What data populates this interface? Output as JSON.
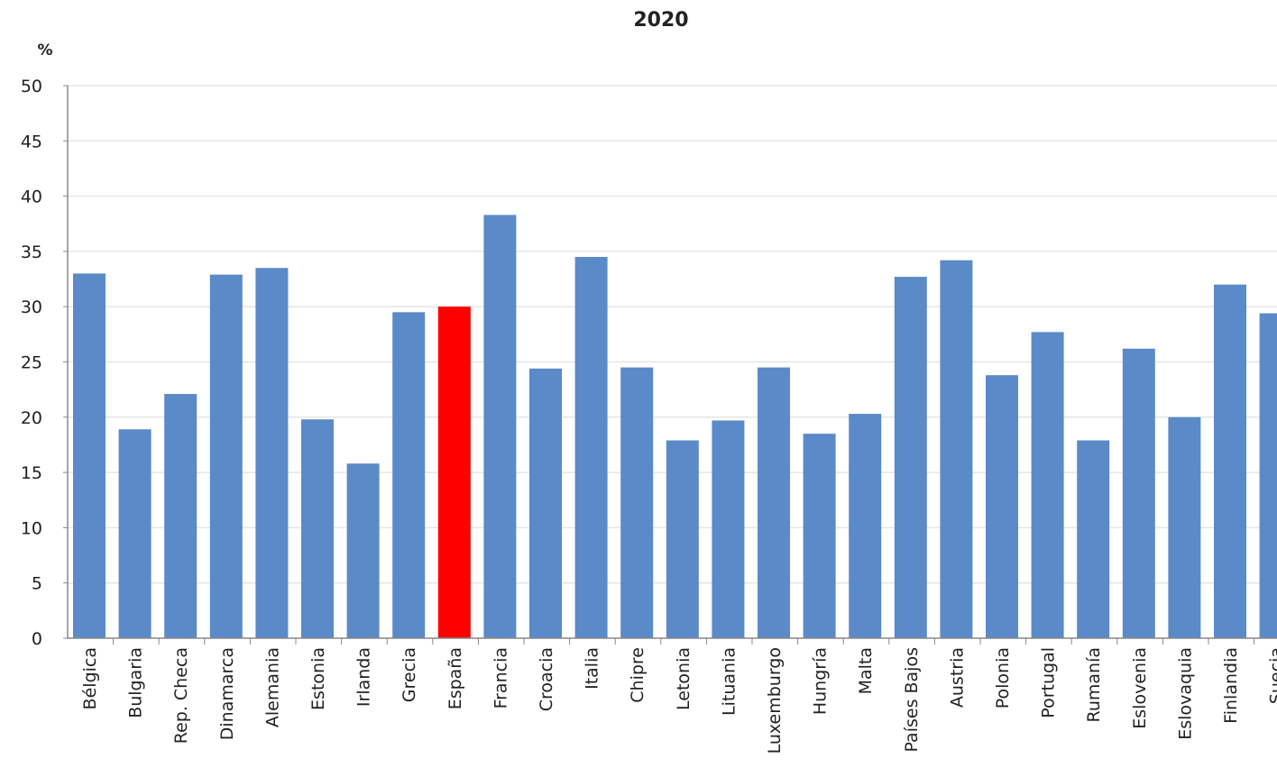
{
  "chart_data": {
    "type": "bar",
    "title": "2020",
    "ylabel": "%",
    "xlabel": "",
    "ylim": [
      0,
      50
    ],
    "yticks": [
      0,
      5,
      10,
      15,
      20,
      25,
      30,
      35,
      40,
      45,
      50
    ],
    "grid": true,
    "categories": [
      "Bélgica",
      "Bulgaria",
      "Rep. Checa",
      "Dinamarca",
      "Alemania",
      "Estonia",
      "Irlanda",
      "Grecia",
      "España",
      "Francia",
      "Croacia",
      "Italia",
      "Chipre",
      "Letonia",
      "Lituania",
      "Luxemburgo",
      "Hungría",
      "Malta",
      "Países Bajos",
      "Austria",
      "Polonia",
      "Portugal",
      "Rumanía",
      "Eslovenia",
      "Eslovaquia",
      "Finlandia",
      "Suecia"
    ],
    "values": [
      33.0,
      18.9,
      22.1,
      32.9,
      33.5,
      19.8,
      15.8,
      29.5,
      30.0,
      38.3,
      24.4,
      34.5,
      24.5,
      17.9,
      19.7,
      24.5,
      18.5,
      20.3,
      32.7,
      34.2,
      23.8,
      27.7,
      17.9,
      26.2,
      20.0,
      32.0,
      29.4
    ],
    "colors": {
      "default": "#5b8ac8",
      "highlight": "#ff0000",
      "grid": "#e6e6e6",
      "axis": "#888888"
    },
    "highlight_category": "España"
  }
}
